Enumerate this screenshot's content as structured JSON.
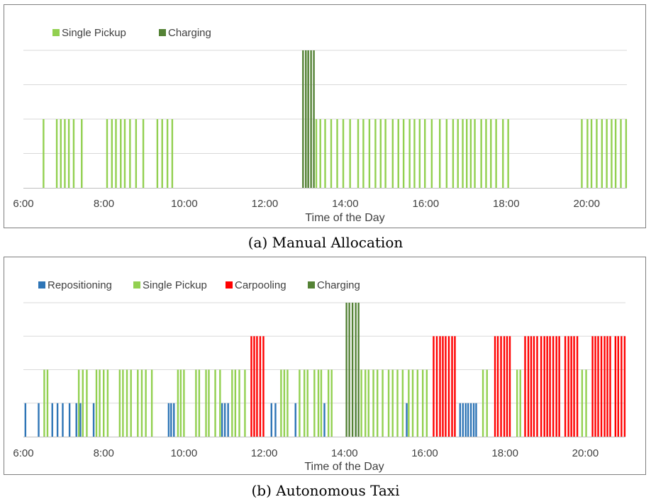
{
  "panels": [
    {
      "id": "a",
      "caption": "(a) Manual Allocation",
      "colors": {
        "Repositioning": "#2e75b6",
        "Single Pickup": "#92d050",
        "Carpooling": "#ff0000",
        "Charging": "#548235"
      },
      "chart_data": {
        "type": "bar",
        "title": "",
        "xlabel": "Time of the Day",
        "ylabel": "",
        "xlim": [
          6.0,
          21.0
        ],
        "ylim": [
          0,
          4
        ],
        "grid": true,
        "legend_position": "top-left",
        "xticks": [
          6,
          8,
          10,
          12,
          14,
          16,
          18,
          20
        ],
        "xtick_labels": [
          "6:00",
          "8:00",
          "10:00",
          "12:00",
          "14:00",
          "16:00",
          "18:00",
          "20:00"
        ],
        "legend": [
          "Single Pickup",
          "Charging"
        ],
        "series": [
          {
            "name": "Single Pickup",
            "value": 2,
            "x": [
              6.5,
              6.83,
              6.93,
              7.03,
              7.13,
              7.25,
              7.45,
              8.08,
              8.2,
              8.3,
              8.42,
              8.52,
              8.65,
              8.8,
              8.98,
              9.33,
              9.45,
              9.58,
              9.7,
              13.28,
              13.38,
              13.5,
              13.65,
              13.8,
              13.95,
              14.12,
              14.32,
              14.45,
              14.6,
              14.75,
              14.88,
              15.0,
              15.18,
              15.32,
              15.45,
              15.6,
              15.72,
              15.85,
              15.98,
              16.15,
              16.35,
              16.52,
              16.68,
              16.8,
              16.92,
              17.02,
              17.12,
              17.22,
              17.38,
              17.5,
              17.62,
              17.75,
              17.92,
              18.05,
              19.88,
              20.02,
              20.12,
              20.25,
              20.38,
              20.5,
              20.62,
              20.72,
              20.85,
              20.98
            ]
          },
          {
            "name": "Charging",
            "value": 4,
            "x": [
              12.95,
              13.02,
              13.08,
              13.15,
              13.22
            ]
          }
        ]
      }
    },
    {
      "id": "b",
      "caption": "(b) Autonomous Taxi",
      "colors": {
        "Repositioning": "#2e75b6",
        "Single Pickup": "#92d050",
        "Carpooling": "#ff0000",
        "Charging": "#548235"
      },
      "chart_data": {
        "type": "bar",
        "title": "",
        "xlabel": "Time of the Day",
        "ylabel": "",
        "xlim": [
          6.0,
          21.0
        ],
        "ylim": [
          0,
          4
        ],
        "grid": true,
        "legend_position": "top-left",
        "xticks": [
          6,
          8,
          10,
          12,
          14,
          16,
          18,
          20
        ],
        "xtick_labels": [
          "6:00",
          "8:00",
          "10:00",
          "12:00",
          "14:00",
          "16:00",
          "18:00",
          "20:00"
        ],
        "legend": [
          "Repositioning",
          "Single Pickup",
          "Carpooling",
          "Charging"
        ],
        "series": [
          {
            "name": "Repositioning",
            "value": 1,
            "x": [
              6.05,
              6.38,
              6.72,
              6.85,
              6.98,
              7.15,
              7.32,
              7.42,
              7.75,
              9.62,
              9.68,
              9.75,
              10.95,
              11.02,
              11.1,
              12.18,
              12.28,
              12.78,
              13.5,
              14.28,
              15.55,
              16.88,
              16.95,
              17.02,
              17.08,
              17.15,
              17.22,
              17.28
            ]
          },
          {
            "name": "Single Pickup",
            "value": 2,
            "x": [
              6.52,
              6.6,
              7.38,
              7.48,
              7.58,
              7.82,
              7.9,
              8.0,
              8.1,
              8.4,
              8.48,
              8.58,
              8.68,
              8.85,
              8.95,
              9.05,
              9.2,
              9.85,
              9.92,
              10.0,
              10.3,
              10.38,
              10.55,
              10.62,
              10.78,
              10.9,
              11.2,
              11.28,
              11.38,
              11.52,
              12.42,
              12.5,
              12.58,
              12.88,
              13.0,
              13.08,
              13.25,
              13.35,
              13.42,
              13.6,
              13.68,
              14.42,
              14.52,
              14.6,
              14.72,
              14.82,
              14.95,
              15.1,
              15.2,
              15.32,
              15.45,
              15.6,
              15.7,
              15.82,
              15.95,
              16.05,
              17.45,
              17.55,
              18.3,
              18.38,
              19.92,
              20.02
            ]
          },
          {
            "name": "Carpooling",
            "value": 3,
            "x": [
              11.68,
              11.75,
              11.82,
              11.9,
              11.98,
              16.22,
              16.3,
              16.38,
              16.45,
              16.52,
              16.6,
              16.68,
              16.75,
              17.75,
              17.82,
              17.9,
              17.98,
              18.05,
              18.12,
              18.5,
              18.58,
              18.65,
              18.72,
              18.8,
              18.9,
              18.98,
              19.05,
              19.12,
              19.2,
              19.28,
              19.35,
              19.5,
              19.58,
              19.65,
              19.72,
              19.8,
              20.18,
              20.25,
              20.32,
              20.4,
              20.48,
              20.55,
              20.62,
              20.75,
              20.82,
              20.9,
              20.98
            ]
          },
          {
            "name": "Charging",
            "value": 4,
            "x": [
              14.05,
              14.12,
              14.2,
              14.28,
              14.35
            ]
          }
        ]
      }
    }
  ]
}
